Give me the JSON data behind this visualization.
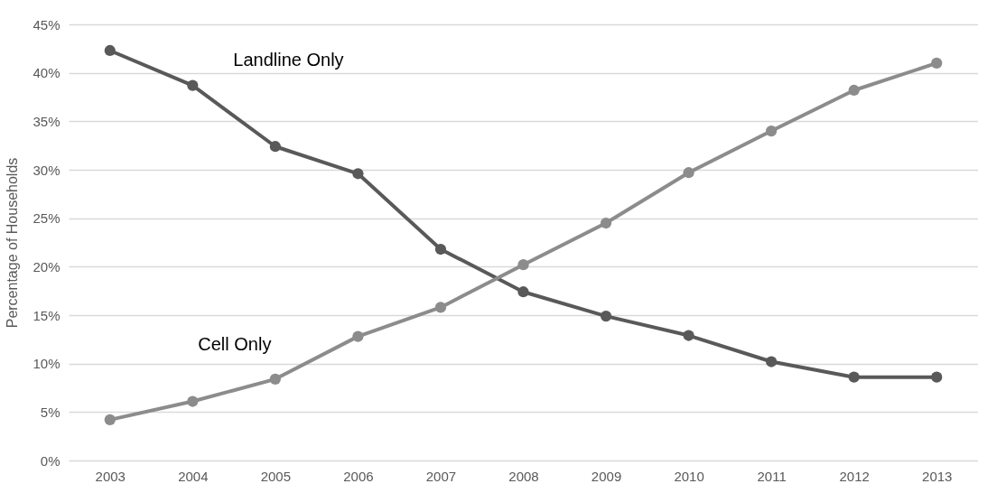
{
  "chart_data": {
    "type": "line",
    "ylabel": "Percentage of Households",
    "categories": [
      "2003",
      "2004",
      "2005",
      "2006",
      "2007",
      "2008",
      "2009",
      "2010",
      "2011",
      "2012",
      "2013"
    ],
    "series": [
      {
        "name": "Landline Only",
        "color": "#595959",
        "values": [
          42.3,
          38.7,
          32.4,
          29.6,
          21.8,
          17.4,
          14.9,
          12.9,
          10.2,
          8.6,
          8.6
        ]
      },
      {
        "name": "Cell Only",
        "color": "#8c8c8c",
        "values": [
          4.2,
          6.1,
          8.4,
          12.8,
          15.8,
          20.2,
          24.5,
          29.7,
          34.0,
          38.2,
          41.0
        ]
      }
    ],
    "ylim": [
      0,
      45
    ],
    "yticks": [
      {
        "value": 0,
        "label": "0%"
      },
      {
        "value": 5,
        "label": "5%"
      },
      {
        "value": 10,
        "label": "10%"
      },
      {
        "value": 15,
        "label": "15%"
      },
      {
        "value": 20,
        "label": "20%"
      },
      {
        "value": 25,
        "label": "25%"
      },
      {
        "value": 30,
        "label": "30%"
      },
      {
        "value": 35,
        "label": "35%"
      },
      {
        "value": 40,
        "label": "40%"
      },
      {
        "value": 45,
        "label": "45%"
      }
    ],
    "grid": "y",
    "legend": false,
    "marker": "circle",
    "line_style": "solid"
  }
}
